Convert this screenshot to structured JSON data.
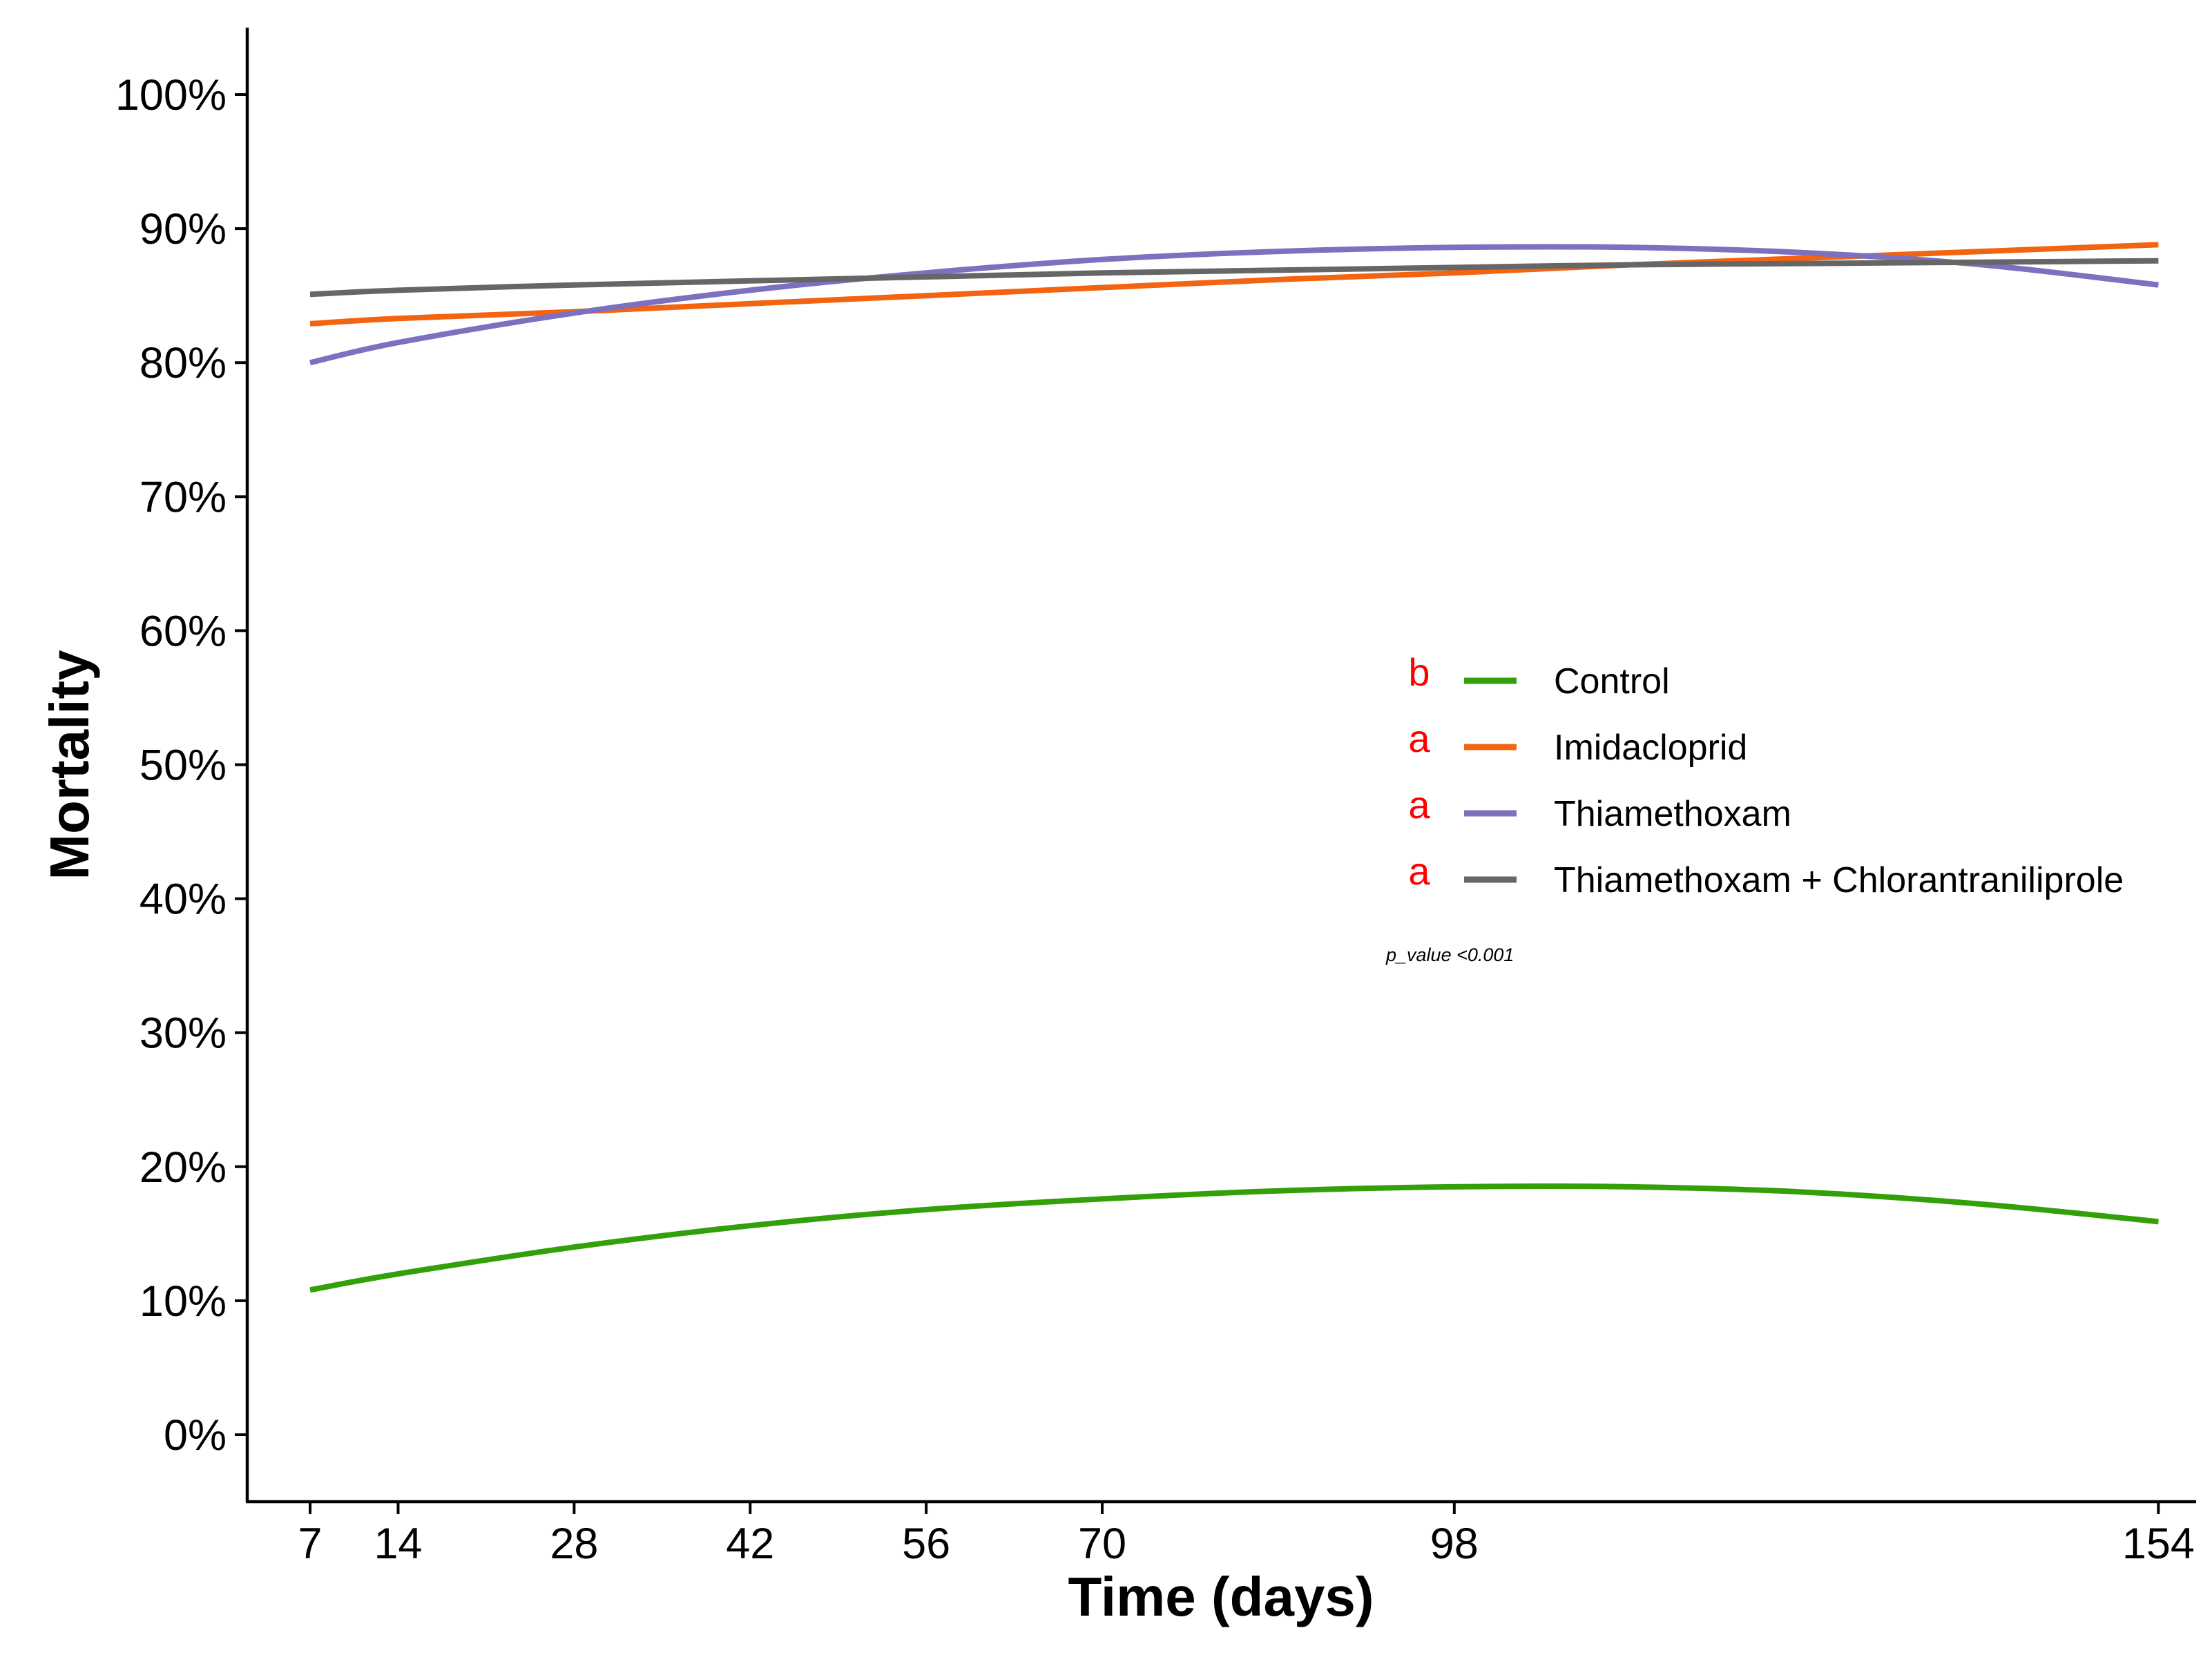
{
  "chart_data": {
    "type": "line",
    "title": "",
    "xlabel": "Time (days)",
    "ylabel": "Mortality",
    "xlim": [
      2,
      157
    ],
    "ylim": [
      -5,
      105
    ],
    "x_ticks": [
      7,
      14,
      28,
      42,
      56,
      70,
      98,
      154
    ],
    "y_ticks": [
      0,
      10,
      20,
      30,
      40,
      50,
      60,
      70,
      80,
      90,
      100
    ],
    "y_tick_labels": [
      "0%",
      "10%",
      "20%",
      "30%",
      "40%",
      "50%",
      "60%",
      "70%",
      "80%",
      "90%",
      "100%"
    ],
    "x": [
      7,
      14,
      28,
      42,
      56,
      70,
      84,
      98,
      112,
      126,
      140,
      154
    ],
    "series": [
      {
        "name": "Control",
        "color": "#33A00A",
        "significance": "b",
        "values": [
          10.8,
          12.0,
          14.0,
          15.6,
          16.8,
          17.6,
          18.2,
          18.5,
          18.5,
          18.1,
          17.2,
          15.9
        ]
      },
      {
        "name": "Imidacloprid",
        "color": "#F26411",
        "significance": "a",
        "values": [
          82.9,
          83.3,
          83.8,
          84.4,
          85.0,
          85.6,
          86.2,
          86.7,
          87.3,
          87.8,
          88.3,
          88.8
        ]
      },
      {
        "name": "Thiamethoxam",
        "color": "#7B71BF",
        "significance": "a",
        "values": [
          80.0,
          81.5,
          83.7,
          85.4,
          86.7,
          87.7,
          88.3,
          88.6,
          88.6,
          88.2,
          87.3,
          85.8
        ]
      },
      {
        "name": "Thiamethoxam + Chlorantraniliprole",
        "color": "#666666",
        "significance": "a",
        "values": [
          85.1,
          85.4,
          85.8,
          86.1,
          86.4,
          86.7,
          86.9,
          87.1,
          87.3,
          87.4,
          87.5,
          87.6
        ]
      }
    ],
    "legend_position": "right-center",
    "annotation": "p_value <0.001",
    "grid": false
  },
  "colors": {
    "significance_letter": "#FF0000",
    "axis": "#000000"
  }
}
